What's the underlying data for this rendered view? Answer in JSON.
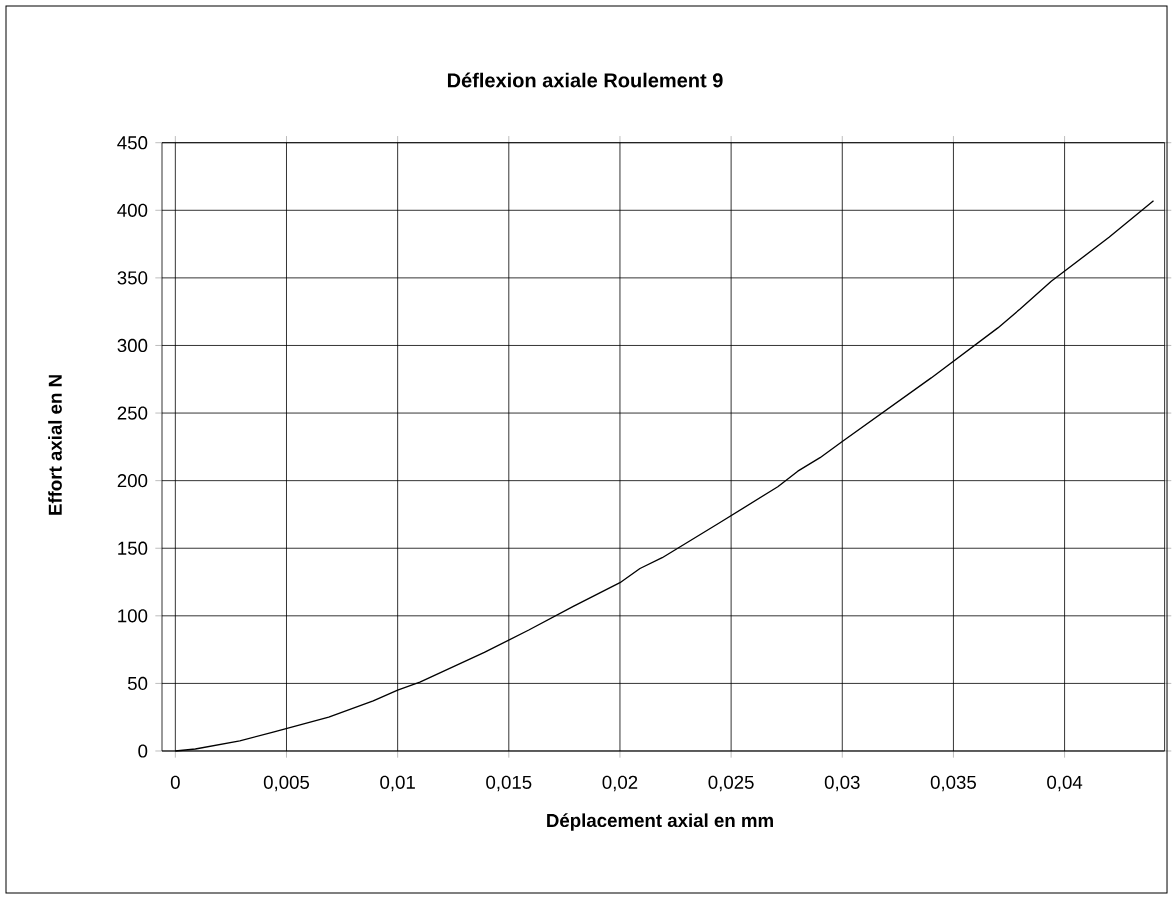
{
  "chart_data": {
    "type": "line",
    "title": "Déflexion axiale Roulement 9",
    "xlabel": "Déplacement axial en mm",
    "ylabel": "Effort axial en N",
    "x": [
      0,
      0.0009,
      0.0029,
      0.0044,
      0.0069,
      0.0089,
      0.01,
      0.011,
      0.0139,
      0.0159,
      0.0179,
      0.02,
      0.0209,
      0.0219,
      0.0245,
      0.0271,
      0.028,
      0.029,
      0.03,
      0.034,
      0.037,
      0.038,
      0.0394,
      0.042,
      0.044
    ],
    "values": [
      0,
      1.5,
      7.5,
      14,
      25,
      37,
      45,
      51,
      73,
      89.5,
      107,
      124.5,
      135,
      143,
      169,
      195.5,
      207,
      217,
      229,
      276,
      313,
      327,
      347.5,
      380,
      407
    ],
    "color": "#000000",
    "marker": "none",
    "line_style": "solid",
    "grid": true,
    "xlim": [
      -0.0006,
      0.0445
    ],
    "ylim": [
      0,
      450
    ],
    "xticks": [
      {
        "value": 0,
        "label": "0"
      },
      {
        "value": 0.005,
        "label": "0,005"
      },
      {
        "value": 0.01,
        "label": "0,01"
      },
      {
        "value": 0.015,
        "label": "0,015"
      },
      {
        "value": 0.02,
        "label": "0,02"
      },
      {
        "value": 0.025,
        "label": "0,025"
      },
      {
        "value": 0.03,
        "label": "0,03"
      },
      {
        "value": 0.035,
        "label": "0,035"
      },
      {
        "value": 0.04,
        "label": "0,04"
      }
    ],
    "yticks": [
      0,
      50,
      100,
      150,
      200,
      250,
      300,
      350,
      400,
      450
    ]
  }
}
